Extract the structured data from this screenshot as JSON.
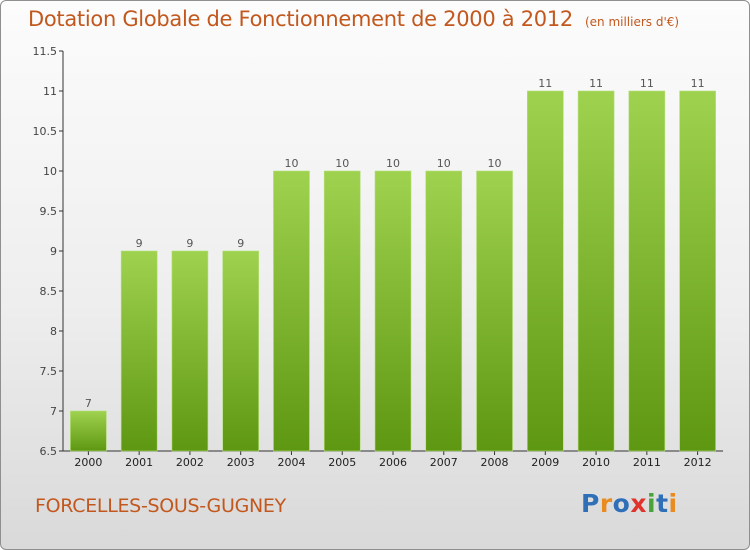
{
  "header": {
    "title": "Dotation Globale de Fonctionnement de 2000 à 2012",
    "subtitle": "(en milliers d'€)"
  },
  "footer": {
    "commune": "FORCELLES-SOUS-GUGNEY",
    "logo_text": "Proxiti",
    "logo_colors": [
      "#2e6fb7",
      "#e98b1f",
      "#2e6fb7",
      "#e0332b",
      "#4aa33a",
      "#2e6fb7",
      "#e98b1f"
    ]
  },
  "colors": {
    "title": "#c2581e",
    "bar_top": "#9fd24f",
    "bar_bottom": "#5e9712"
  },
  "chart_data": {
    "type": "bar",
    "title": "Dotation Globale de Fonctionnement de 2000 à 2012",
    "subtitle": "(en milliers d'€)",
    "categories": [
      "2000",
      "2001",
      "2002",
      "2003",
      "2004",
      "2005",
      "2006",
      "2007",
      "2008",
      "2009",
      "2010",
      "2011",
      "2012"
    ],
    "values": [
      7,
      9,
      9,
      9,
      10,
      10,
      10,
      10,
      10,
      11,
      11,
      11,
      11
    ],
    "data_labels": [
      "7",
      "9",
      "9",
      "9",
      "10",
      "10",
      "10",
      "10",
      "10",
      "11",
      "11",
      "11",
      "11"
    ],
    "ylim": [
      6.5,
      11.5
    ],
    "yticks": [
      6.5,
      7,
      7.5,
      8,
      8.5,
      9,
      9.5,
      10,
      10.5,
      11,
      11.5
    ],
    "ytick_labels": [
      "6.5",
      "7",
      "7.5",
      "8",
      "8.5",
      "9",
      "9.5",
      "10",
      "10.5",
      "11",
      "11.5"
    ],
    "grid": false,
    "legend": "none",
    "xlabel": "",
    "ylabel": ""
  }
}
